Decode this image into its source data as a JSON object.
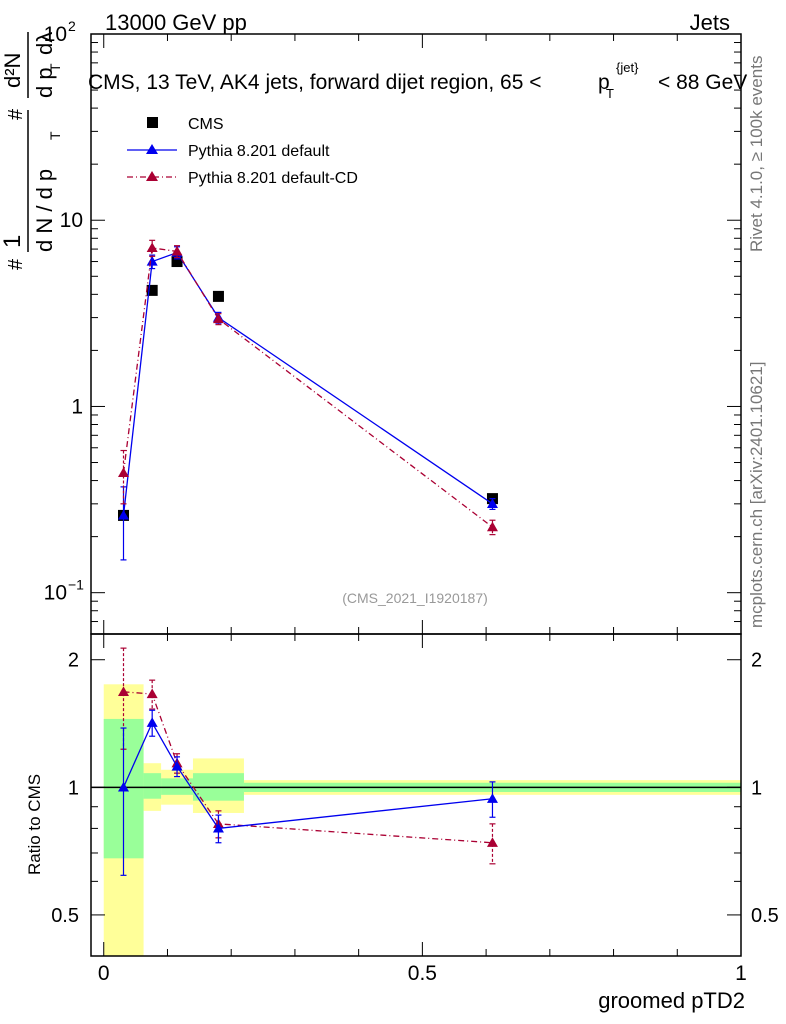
{
  "header": {
    "left": "13000 GeV pp",
    "right": "Jets"
  },
  "side_text": {
    "rivet": "Rivet 4.1.0, ≥ 100k events",
    "mcplots": "mcplots.cern.ch [arXiv:2401.10621]"
  },
  "ylabel_top": {
    "frac1": "1",
    "dn": "d N / d p",
    "t": "T",
    "hash1": "#",
    "d2n": "d²N",
    "den": "d p",
    "dl": "dλ",
    "hash2": "#",
    "hash3": "#"
  },
  "ylabel_bottom": "Ratio to CMS",
  "chart_data": {
    "type": "line",
    "title": "CMS, 13 TeV, AK4 jets, forward dijet region, 65 < p_T^{jet} < 88 GeV",
    "title_parts": {
      "main": "CMS, 13 TeV, AK4 jets, forward dijet region, 65 <",
      "p": "p",
      "sub": "T",
      "sup": "{jet}",
      "end": "< 88 GeV"
    },
    "analysis_id": "(CMS_2021_I1920187)",
    "xlabel": "groomed pTD2",
    "xlim": [
      -0.02,
      1.0
    ],
    "ylim_top": [
      0.06,
      100
    ],
    "ylim_ratio": [
      0.4,
      2.3
    ],
    "yscale": "log",
    "x_ticks": [
      0,
      0.5,
      1
    ],
    "x_tick_labels": [
      "0",
      "0.5",
      "1"
    ],
    "y_ticks_top": [
      0.1,
      1,
      10,
      100
    ],
    "y_tick_labels_top": [
      {
        "base": "10",
        "exp": "−1"
      },
      {
        "base": "1",
        "exp": ""
      },
      {
        "base": "10",
        "exp": ""
      },
      {
        "base": "10",
        "exp": "2"
      }
    ],
    "y_ticks_ratio": [
      0.5,
      1,
      2
    ],
    "y_tick_labels_ratio": [
      "0.5",
      "1",
      "2"
    ],
    "bin_edges": [
      0.0,
      0.0625,
      0.09,
      0.14,
      0.22,
      1.0
    ],
    "ratio_bands": {
      "green_lo": [
        0.68,
        0.94,
        0.96,
        0.93,
        0.975
      ],
      "green_hi": [
        1.45,
        1.08,
        1.05,
        1.08,
        1.025
      ],
      "yellow_lo": [
        0.4,
        0.88,
        0.91,
        0.87,
        0.96
      ],
      "yellow_hi": [
        1.75,
        1.14,
        1.1,
        1.17,
        1.04
      ]
    },
    "legend": [
      "CMS",
      "Pythia 8.201 default",
      "Pythia 8.201 default-CD"
    ],
    "series": [
      {
        "name": "CMS",
        "color": "#000000",
        "marker": "square",
        "x": [
          0.031,
          0.076,
          0.115,
          0.18,
          0.61
        ],
        "y": [
          0.26,
          4.2,
          6.0,
          3.9,
          0.32
        ],
        "yerr": [
          0,
          0,
          0,
          0,
          0
        ],
        "ratio": [
          1,
          1,
          1,
          1,
          1
        ],
        "ratio_err": [
          0,
          0,
          0,
          0,
          0
        ]
      },
      {
        "name": "Pythia 8.201 default",
        "color": "#0000ee",
        "marker": "triangle",
        "dash": "solid",
        "x": [
          0.031,
          0.076,
          0.115,
          0.18,
          0.61
        ],
        "y": [
          0.26,
          6.0,
          6.7,
          3.0,
          0.3
        ],
        "yerr": [
          0.11,
          0.5,
          0.5,
          0.2,
          0.02
        ],
        "ratio": [
          1.0,
          1.42,
          1.12,
          0.8,
          0.94
        ],
        "ratio_err": [
          0.38,
          0.1,
          0.06,
          0.06,
          0.09
        ]
      },
      {
        "name": "Pythia 8.201 default-CD",
        "color": "#aa0033",
        "marker": "triangle",
        "dash": "dashdot",
        "x": [
          0.031,
          0.076,
          0.115,
          0.18,
          0.61
        ],
        "y": [
          0.44,
          7.1,
          6.8,
          2.95,
          0.225
        ],
        "yerr": [
          0.14,
          0.7,
          0.5,
          0.2,
          0.02
        ],
        "ratio": [
          1.68,
          1.66,
          1.14,
          0.82,
          0.74
        ],
        "ratio_err": [
          0.45,
          0.13,
          0.06,
          0.06,
          0.08
        ]
      }
    ]
  }
}
